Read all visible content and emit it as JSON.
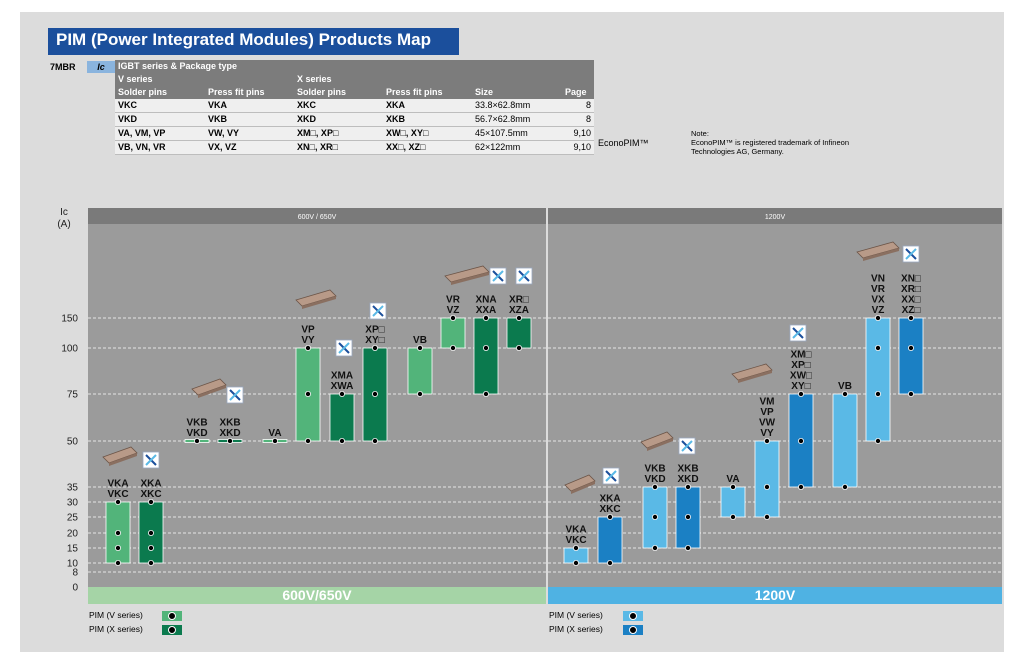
{
  "title": "PIM (Power Integrated Modules) Products Map",
  "prefix": "7MBR",
  "ic_tag": "Ic",
  "table": {
    "header_group": "IGBT series & Package type",
    "v_series": "V series",
    "x_series": "X series",
    "col_solder": "Solder pins",
    "col_press": "Press fit pins",
    "col_size": "Size",
    "col_page": "Page",
    "rows": [
      {
        "v_solder": "VKC",
        "v_press": "VKA",
        "x_solder": "XKC",
        "x_press": "XKA",
        "size": "33.8×62.8mm",
        "page": "8"
      },
      {
        "v_solder": "VKD",
        "v_press": "VKB",
        "x_solder": "XKD",
        "x_press": "XKB",
        "size": "56.7×62.8mm",
        "page": "8"
      },
      {
        "v_solder": "VA, VM, VP",
        "v_press": "VW, VY",
        "x_solder": "XM□, XP□",
        "x_press": "XW□, XY□",
        "size": "45×107.5mm",
        "page": "9,10"
      },
      {
        "v_solder": "VB, VN, VR",
        "v_press": "VX, VZ",
        "x_solder": "XN□, XR□",
        "x_press": "XX□, XZ□",
        "size": "62×122mm",
        "page": "9,10"
      }
    ],
    "econopim": "EconoPIM™"
  },
  "note": {
    "label": "Note:",
    "text": "EconoPIM™ is registered trademark of Infineon Technologies AG, Germany."
  },
  "legend": {
    "v_series": "PIM (V series)",
    "x_series": "PIM (X series)"
  },
  "colors": {
    "green_v": "#52b47a",
    "green_x": "#0b7a4e",
    "blue_v": "#5ab9e6",
    "blue_x": "#1b80c4",
    "panel_bg": "#9b9b9b",
    "bar_600": "#a5d4a6",
    "bar_1200": "#4fb2e3"
  },
  "chart_data": {
    "type": "bar",
    "ylabel": "Ic\n(A)",
    "yticks": [
      0,
      8,
      10,
      15,
      20,
      25,
      30,
      35,
      50,
      75,
      100,
      150
    ],
    "sections": [
      {
        "header": "600V / 650V",
        "footer": "600V/650V"
      },
      {
        "header": "1200V",
        "footer": "1200V"
      }
    ],
    "bars": [
      {
        "section": 0,
        "series": "V",
        "labels": [
          "VKA",
          "VKC"
        ],
        "min": 10,
        "max": 30,
        "dots": [
          30,
          20,
          15,
          10
        ]
      },
      {
        "section": 0,
        "series": "X",
        "labels": [
          "XKA",
          "XKC"
        ],
        "min": 10,
        "max": 30,
        "dots": [
          30,
          20,
          15,
          10
        ]
      },
      {
        "section": 0,
        "series": "V",
        "labels": [
          "VKB",
          "VKD"
        ],
        "min": 50,
        "max": 50,
        "dots": [
          50
        ]
      },
      {
        "section": 0,
        "series": "X",
        "labels": [
          "XKB",
          "XKD"
        ],
        "min": 50,
        "max": 50,
        "dots": [
          50
        ]
      },
      {
        "section": 0,
        "series": "V",
        "labels": [
          "VA"
        ],
        "min": 50,
        "max": 50,
        "dots": [
          50
        ]
      },
      {
        "section": 0,
        "series": "V",
        "labels": [
          "VP",
          "VY"
        ],
        "min": 50,
        "max": 100,
        "dots": [
          100,
          75,
          50
        ]
      },
      {
        "section": 0,
        "series": "X",
        "labels": [
          "XMA",
          "XWA"
        ],
        "min": 50,
        "max": 75,
        "dots": [
          75,
          50
        ]
      },
      {
        "section": 0,
        "series": "X",
        "labels": [
          "XP□",
          "XY□"
        ],
        "min": 50,
        "max": 100,
        "dots": [
          100,
          75,
          50
        ]
      },
      {
        "section": 0,
        "series": "V",
        "labels": [
          "VB"
        ],
        "min": 75,
        "max": 100,
        "dots": [
          100,
          75
        ]
      },
      {
        "section": 0,
        "series": "V",
        "labels": [
          "VR",
          "VZ"
        ],
        "min": 100,
        "max": 150,
        "dots": [
          150,
          100
        ]
      },
      {
        "section": 0,
        "series": "X",
        "labels": [
          "XNA",
          "XXA"
        ],
        "min": 75,
        "max": 150,
        "dots": [
          150,
          100,
          75
        ]
      },
      {
        "section": 0,
        "series": "X",
        "labels": [
          "XR□",
          "XZA"
        ],
        "min": 100,
        "max": 150,
        "dots": [
          150,
          100
        ]
      },
      {
        "section": 1,
        "series": "V",
        "labels": [
          "VKA",
          "VKC"
        ],
        "min": 10,
        "max": 15,
        "dots": [
          15,
          10
        ]
      },
      {
        "section": 1,
        "series": "X",
        "labels": [
          "XKA",
          "XKC"
        ],
        "min": 10,
        "max": 25,
        "dots": [
          25,
          10
        ]
      },
      {
        "section": 1,
        "series": "V",
        "labels": [
          "VKB",
          "VKD"
        ],
        "min": 15,
        "max": 35,
        "dots": [
          35,
          25,
          15
        ]
      },
      {
        "section": 1,
        "series": "X",
        "labels": [
          "XKB",
          "XKD"
        ],
        "min": 15,
        "max": 35,
        "dots": [
          35,
          25,
          15
        ]
      },
      {
        "section": 1,
        "series": "V",
        "labels": [
          "VA"
        ],
        "min": 25,
        "max": 35,
        "dots": [
          35,
          25
        ]
      },
      {
        "section": 1,
        "series": "V",
        "labels": [
          "VM",
          "VP",
          "VW",
          "VY"
        ],
        "min": 25,
        "max": 50,
        "dots": [
          50,
          35,
          25
        ]
      },
      {
        "section": 1,
        "series": "X",
        "labels": [
          "XM□",
          "XP□",
          "XW□",
          "XY□"
        ],
        "min": 35,
        "max": 75,
        "dots": [
          75,
          50,
          35
        ]
      },
      {
        "section": 1,
        "series": "V",
        "labels": [
          "VB"
        ],
        "min": 35,
        "max": 75,
        "dots": [
          75,
          35
        ]
      },
      {
        "section": 1,
        "series": "V",
        "labels": [
          "VN",
          "VR",
          "VX",
          "VZ"
        ],
        "min": 50,
        "max": 150,
        "dots": [
          150,
          100,
          75,
          50
        ]
      },
      {
        "section": 1,
        "series": "X",
        "labels": [
          "XN□",
          "XR□",
          "XX□",
          "XZ□"
        ],
        "min": 75,
        "max": 150,
        "dots": [
          150,
          100,
          75
        ]
      }
    ]
  }
}
